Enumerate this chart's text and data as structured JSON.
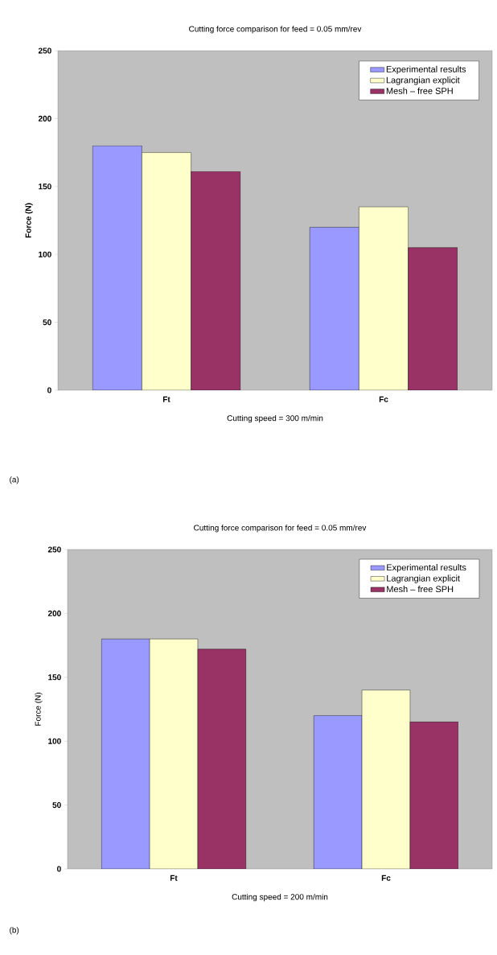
{
  "chart_data": [
    {
      "type": "bar",
      "title": "Cutting force comparison for feed = 0.05 mm/rev",
      "xlabel": "Cutting speed = 300 m/min",
      "ylabel": "Force (N)",
      "categories": [
        "Ft",
        "Fc"
      ],
      "series": [
        {
          "name": "Experimental results",
          "color": "#9999ff",
          "values": [
            180,
            120
          ]
        },
        {
          "name": "Lagrangian explicit",
          "color": "#ffffcc",
          "values": [
            175,
            135
          ]
        },
        {
          "name": "Mesh – free SPH",
          "color": "#993366",
          "values": [
            161,
            105
          ]
        }
      ],
      "ylim": [
        0,
        250
      ],
      "yticks": [
        0,
        50,
        100,
        150,
        200,
        250
      ],
      "legend": "top right",
      "annotations": [
        "(a)"
      ]
    },
    {
      "type": "bar",
      "title": "Cutting force comparison for feed = 0.05 mm/rev",
      "xlabel": "Cutting speed = 200 m/min",
      "ylabel": "Force (N)",
      "categories": [
        "Ft",
        "Fc"
      ],
      "series": [
        {
          "name": "Experimental results",
          "color": "#9999ff",
          "values": [
            180,
            120
          ]
        },
        {
          "name": "Lagrangian explicit",
          "color": "#ffffcc",
          "values": [
            180,
            140
          ]
        },
        {
          "name": "Mesh – free SPH",
          "color": "#993366",
          "values": [
            172,
            115
          ]
        }
      ],
      "ylim": [
        0,
        250
      ],
      "yticks": [
        0,
        50,
        100,
        150,
        200,
        250
      ],
      "legend": "top right",
      "annotations": [
        "(b)"
      ]
    }
  ]
}
